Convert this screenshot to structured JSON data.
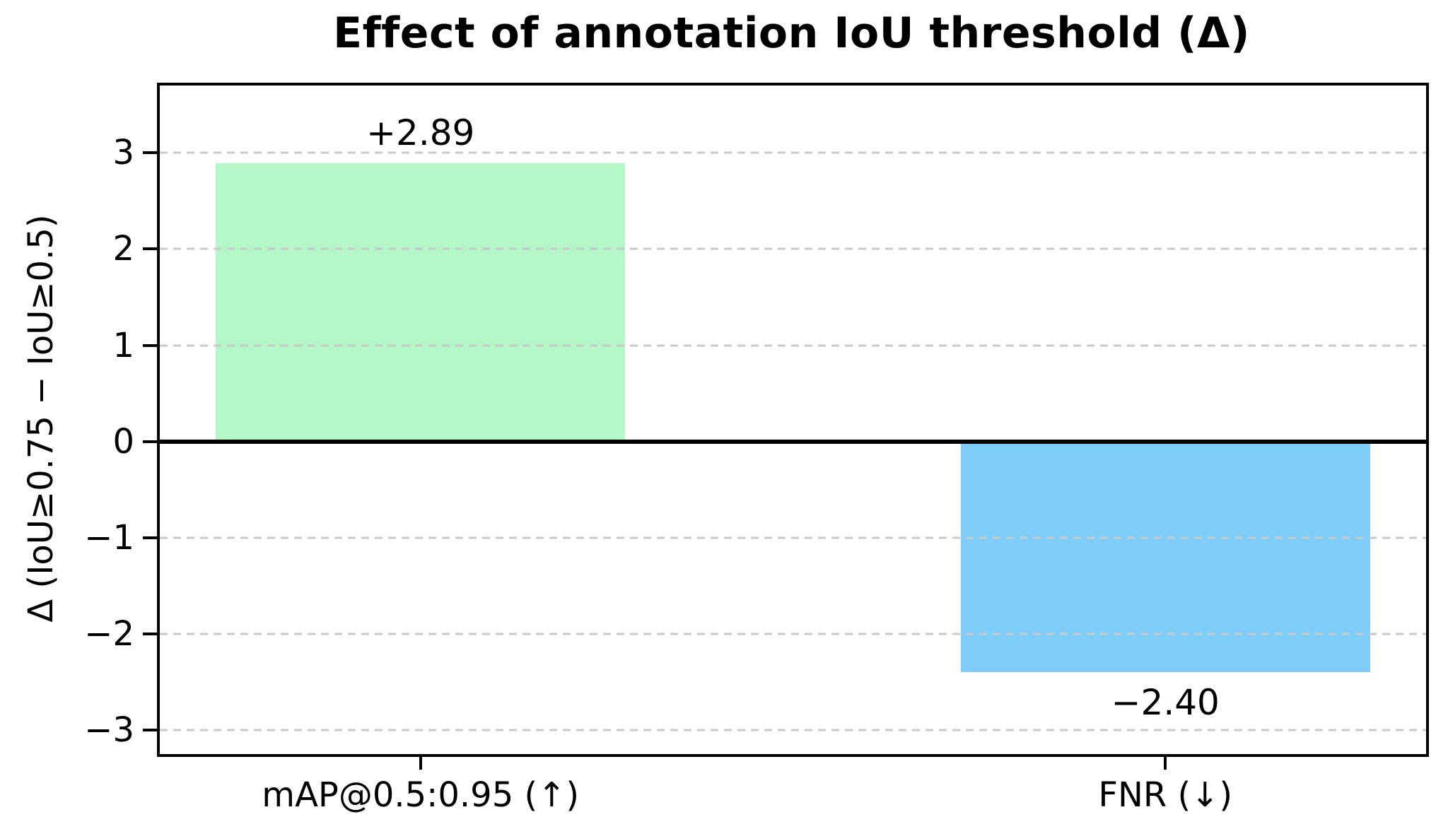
{
  "chart_data": {
    "type": "bar",
    "title": "Effect of annotation IoU threshold (Δ)",
    "ylabel": "Δ (IoU≥0.75 − IoU≥0.5)",
    "categories": [
      "mAP@0.5:0.95 (↑)",
      "FNR (↓)"
    ],
    "values": [
      2.89,
      -2.4
    ],
    "value_labels": [
      "+2.89",
      "−2.40"
    ],
    "bar_colors": [
      "#b4f8c8",
      "#7dcdf8"
    ],
    "bar_width": 0.55,
    "xlim": [
      -0.35,
      1.35
    ],
    "ylim": [
      -3.25,
      3.7
    ],
    "yticks": [
      3,
      2,
      1,
      0,
      -1,
      -2,
      -3
    ],
    "ytick_labels": [
      "3",
      "2",
      "1",
      "0",
      "−1",
      "−2",
      "−3"
    ],
    "grid": {
      "axis": "y",
      "style": "dashed",
      "color": "#c9c9c9",
      "above_bars": true
    },
    "zero_line": {
      "value": 0,
      "color": "#000000"
    },
    "legend": "none",
    "background": "#ffffff"
  }
}
